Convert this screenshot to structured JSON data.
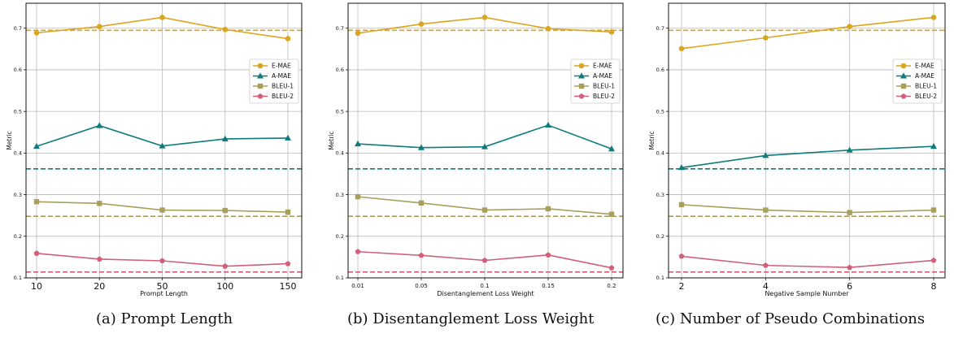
{
  "legend_labels": [
    "E-MAE",
    "A-MAE",
    "BLEU-1",
    "BLEU-2"
  ],
  "colors": {
    "E-MAE": "#DAA520",
    "A-MAE": "#0E7C7B",
    "BLEU-1": "#A89F5B",
    "BLEU-2": "#D0607A"
  },
  "captions": [
    "(a)  Prompt Length",
    "(b)  Disentanglement Loss Weight",
    "(c)  Number of Pseudo Combinations"
  ],
  "chart_data": [
    {
      "type": "line",
      "xlabel": "Prompt Length",
      "ylabel": "Metric",
      "categories": [
        "10",
        "20",
        "50",
        "100",
        "150"
      ],
      "ylim": [
        0.1,
        0.76
      ],
      "yticks": [
        "0.1",
        "0.2",
        "0.3",
        "0.4",
        "0.5",
        "0.6",
        "0.7"
      ],
      "grid": true,
      "legend_position": "right",
      "series": [
        {
          "name": "E-MAE",
          "values": [
            0.689,
            0.704,
            0.726,
            0.697,
            0.675
          ],
          "baseline": 0.695,
          "marker": "circle"
        },
        {
          "name": "A-MAE",
          "values": [
            0.416,
            0.466,
            0.417,
            0.434,
            0.436
          ],
          "baseline": 0.362,
          "marker": "triangle"
        },
        {
          "name": "BLEU-1",
          "values": [
            0.283,
            0.279,
            0.263,
            0.262,
            0.258
          ],
          "baseline": 0.248,
          "marker": "square"
        },
        {
          "name": "BLEU-2",
          "values": [
            0.159,
            0.145,
            0.141,
            0.128,
            0.134
          ],
          "baseline": 0.114,
          "marker": "pentagon"
        }
      ]
    },
    {
      "type": "line",
      "xlabel": "Disentanglement Loss Weight",
      "ylabel": "Metric",
      "categories": [
        "0.01",
        "0.05",
        "0.1",
        "0.15",
        "0.2"
      ],
      "ylim": [
        0.1,
        0.76
      ],
      "yticks": [
        "0.1",
        "0.2",
        "0.3",
        "0.4",
        "0.5",
        "0.6",
        "0.7"
      ],
      "grid": true,
      "legend_position": "right",
      "series": [
        {
          "name": "E-MAE",
          "values": [
            0.688,
            0.71,
            0.726,
            0.699,
            0.691
          ],
          "baseline": 0.695,
          "marker": "circle"
        },
        {
          "name": "A-MAE",
          "values": [
            0.422,
            0.413,
            0.415,
            0.467,
            0.41
          ],
          "baseline": 0.362,
          "marker": "triangle"
        },
        {
          "name": "BLEU-1",
          "values": [
            0.295,
            0.28,
            0.263,
            0.266,
            0.253
          ],
          "baseline": 0.248,
          "marker": "square"
        },
        {
          "name": "BLEU-2",
          "values": [
            0.163,
            0.154,
            0.142,
            0.155,
            0.124
          ],
          "baseline": 0.114,
          "marker": "pentagon"
        }
      ]
    },
    {
      "type": "line",
      "xlabel": "Negative Sample Number",
      "ylabel": "Metric",
      "categories": [
        "2",
        "4",
        "6",
        "8"
      ],
      "ylim": [
        0.1,
        0.76
      ],
      "yticks": [
        "0.1",
        "0.2",
        "0.3",
        "0.4",
        "0.5",
        "0.6",
        "0.7"
      ],
      "grid": true,
      "legend_position": "right",
      "series": [
        {
          "name": "E-MAE",
          "values": [
            0.651,
            0.677,
            0.704,
            0.726
          ],
          "baseline": 0.695,
          "marker": "circle"
        },
        {
          "name": "A-MAE",
          "values": [
            0.365,
            0.394,
            0.407,
            0.416
          ],
          "baseline": 0.362,
          "marker": "triangle"
        },
        {
          "name": "BLEU-1",
          "values": [
            0.276,
            0.263,
            0.257,
            0.263
          ],
          "baseline": 0.248,
          "marker": "square"
        },
        {
          "name": "BLEU-2",
          "values": [
            0.152,
            0.13,
            0.125,
            0.142
          ],
          "baseline": 0.114,
          "marker": "pentagon"
        }
      ]
    }
  ]
}
